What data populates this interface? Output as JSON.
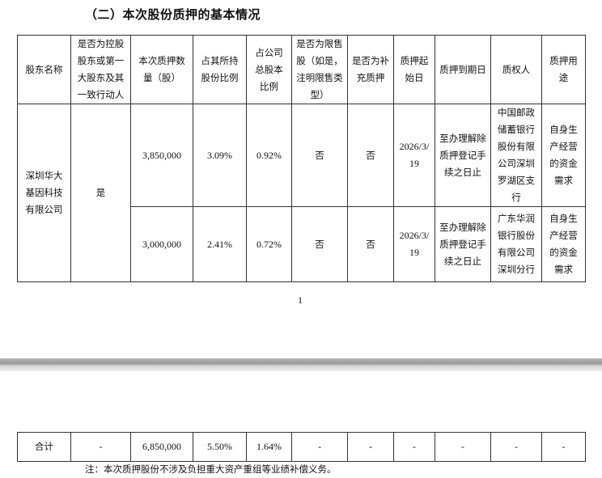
{
  "title": "（二）本次股份质押的基本情况",
  "table": {
    "headers": [
      "股东名称",
      "是否为控股股东或第一大股东及其一致行动人",
      "本次质押数量（股）",
      "占其所持股份比例",
      "占公司总股本比例",
      "是否为限售股（如是，注明限售类型）",
      "是否为补充质押",
      "质押起始日",
      "质押到期日",
      "质权人",
      "质押用途"
    ],
    "shareholder": "深圳华大基因科技有限公司",
    "is_controlling": "是",
    "rows": [
      {
        "quantity": "3,850,000",
        "pct_held": "3.09%",
        "pct_total": "0.92%",
        "restricted": "否",
        "supplementary": "否",
        "start": "2026/3/19",
        "end": "至办理解除质押登记手续之日止",
        "pledgee": "中国邮政储蓄银行股份有限公司深圳罗湖区支行",
        "purpose": "自身生产经营的资金需求"
      },
      {
        "quantity": "3,000,000",
        "pct_held": "2.41%",
        "pct_total": "0.72%",
        "restricted": "否",
        "supplementary": "否",
        "start": "2026/3/19",
        "end": "至办理解除质押登记手续之日止",
        "pledgee": "广东华润银行股份有限公司深圳分行",
        "purpose": "自身生产经营的资金需求"
      }
    ],
    "total": [
      "合计",
      "-",
      "6,850,000",
      "5.50%",
      "1.64%",
      "-",
      "-",
      "-",
      "-",
      "-",
      "-"
    ]
  },
  "page_number": "1",
  "note": "注：本次质押股份不涉及负担重大资产重组等业绩补偿义务。"
}
